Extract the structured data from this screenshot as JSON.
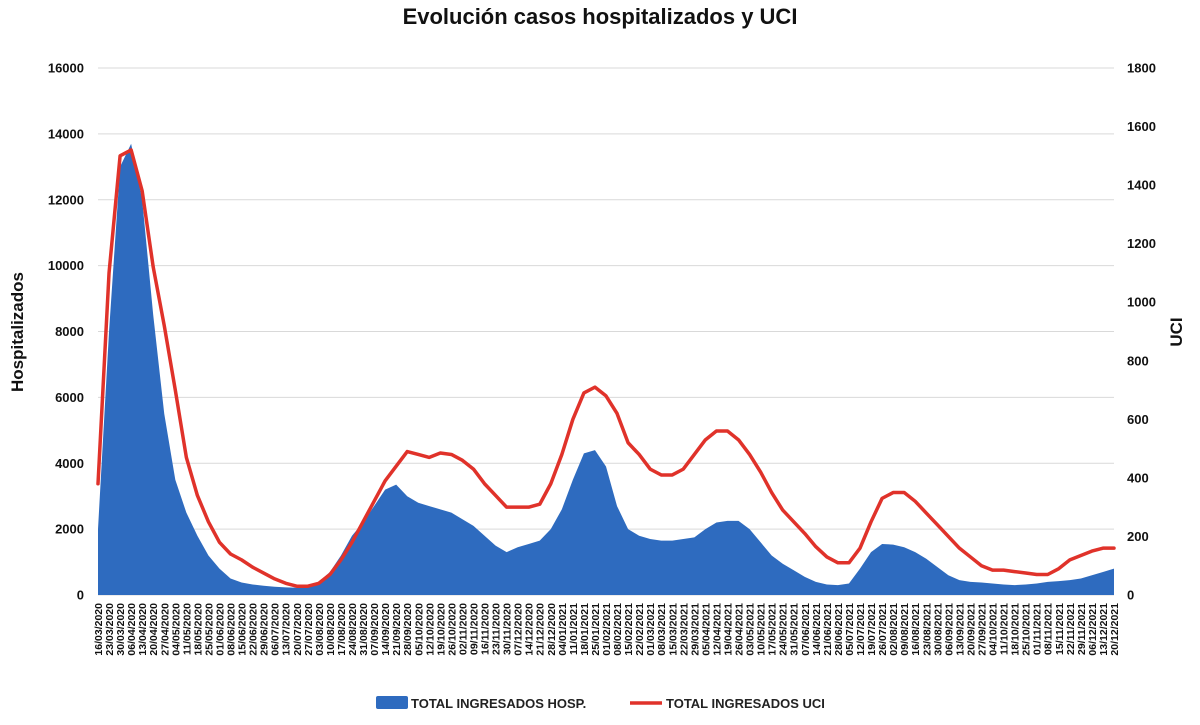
{
  "chart_data": {
    "type": "area",
    "title": "Evolución casos hospitalizados y UCI",
    "ylabel_left": "Hospitalizados",
    "ylabel_right": "UCI",
    "xlabel": "",
    "y_left_range": [
      0,
      16000
    ],
    "y_left_ticks": [
      0,
      2000,
      4000,
      6000,
      8000,
      10000,
      12000,
      14000,
      16000
    ],
    "y_right_range": [
      0,
      1800
    ],
    "y_right_ticks": [
      0,
      200,
      400,
      600,
      800,
      1000,
      1200,
      1400,
      1600,
      1800
    ],
    "grid": true,
    "legend_position": "bottom",
    "x_ticks": [
      "16/03/2020",
      "23/03/2020",
      "30/03/2020",
      "06/04/2020",
      "13/04/2020",
      "20/04/2020",
      "27/04/2020",
      "04/05/2020",
      "11/05/2020",
      "18/05/2020",
      "25/05/2020",
      "01/06/2020",
      "08/06/2020",
      "15/06/2020",
      "22/06/2020",
      "29/06/2020",
      "06/07/2020",
      "13/07/2020",
      "20/07/2020",
      "27/07/2020",
      "03/08/2020",
      "10/08/2020",
      "17/08/2020",
      "24/08/2020",
      "31/08/2020",
      "07/09/2020",
      "14/09/2020",
      "21/09/2020",
      "28/09/2020",
      "05/10/2020",
      "12/10/2020",
      "19/10/2020",
      "26/10/2020",
      "02/11/2020",
      "09/11/2020",
      "16/11/2020",
      "23/11/2020",
      "30/11/2020",
      "07/12/2020",
      "14/12/2020",
      "21/12/2020",
      "28/12/2020",
      "04/01/2021",
      "11/01/2021",
      "18/01/2021",
      "25/01/2021",
      "01/02/2021",
      "08/02/2021",
      "15/02/2021",
      "22/02/2021",
      "01/03/2021",
      "08/03/2021",
      "15/03/2021",
      "22/03/2021",
      "29/03/2021",
      "05/04/2021",
      "12/04/2021",
      "19/04/2021",
      "26/04/2021",
      "03/05/2021",
      "10/05/2021",
      "17/05/2021",
      "24/05/2021",
      "31/05/2021",
      "07/06/2021",
      "14/06/2021",
      "21/06/2021",
      "28/06/2021",
      "05/07/2021",
      "12/07/2021",
      "19/07/2021",
      "26/07/2021",
      "02/08/2021",
      "09/08/2021",
      "16/08/2021",
      "23/08/2021",
      "30/08/2021",
      "06/09/2021",
      "13/09/2021",
      "20/09/2021",
      "27/09/2021",
      "04/10/2021",
      "11/10/2021",
      "18/10/2021",
      "25/10/2021",
      "01/11/2021",
      "08/11/2021",
      "15/11/2021",
      "22/11/2021",
      "29/11/2021",
      "06/12/2021",
      "13/12/2021",
      "20/12/2021"
    ],
    "series": [
      {
        "name": "TOTAL INGRESADOS HOSP.",
        "type": "area",
        "axis": "left",
        "color": "#2e6bbf",
        "values": [
          2000,
          8000,
          13000,
          13700,
          12000,
          8500,
          5500,
          3500,
          2500,
          1800,
          1200,
          800,
          500,
          380,
          320,
          280,
          250,
          230,
          220,
          260,
          400,
          700,
          1200,
          1800,
          2200,
          2700,
          3200,
          3350,
          3000,
          2800,
          2700,
          2600,
          2500,
          2300,
          2100,
          1800,
          1500,
          1300,
          1450,
          1550,
          1650,
          2000,
          2600,
          3500,
          4300,
          4400,
          3900,
          2700,
          2000,
          1800,
          1700,
          1650,
          1650,
          1700,
          1750,
          2000,
          2200,
          2250,
          2250,
          2000,
          1600,
          1200,
          950,
          750,
          550,
          400,
          320,
          300,
          350,
          800,
          1300,
          1550,
          1530,
          1450,
          1300,
          1100,
          850,
          600,
          450,
          400,
          380,
          350,
          320,
          300,
          320,
          350,
          400,
          420,
          450,
          500,
          600,
          700,
          800
        ]
      },
      {
        "name": "TOTAL INGRESADOS UCI",
        "type": "line",
        "axis": "right",
        "color": "#e0322a",
        "values": [
          380,
          1100,
          1500,
          1520,
          1380,
          1120,
          920,
          700,
          470,
          340,
          250,
          180,
          140,
          120,
          95,
          75,
          55,
          40,
          30,
          30,
          40,
          70,
          120,
          180,
          250,
          320,
          390,
          440,
          490,
          480,
          470,
          485,
          480,
          460,
          430,
          380,
          340,
          300,
          300,
          300,
          310,
          380,
          480,
          600,
          690,
          710,
          680,
          620,
          520,
          480,
          430,
          410,
          410,
          430,
          480,
          530,
          560,
          560,
          530,
          480,
          420,
          350,
          290,
          250,
          210,
          165,
          130,
          110,
          110,
          160,
          250,
          330,
          350,
          350,
          320,
          280,
          240,
          200,
          160,
          130,
          100,
          85,
          85,
          80,
          75,
          70,
          70,
          90,
          120,
          135,
          150,
          160,
          160
        ]
      }
    ]
  },
  "legend": {
    "hosp_label": "TOTAL INGRESADOS HOSP.",
    "uci_label": "TOTAL INGRESADOS UCI"
  }
}
